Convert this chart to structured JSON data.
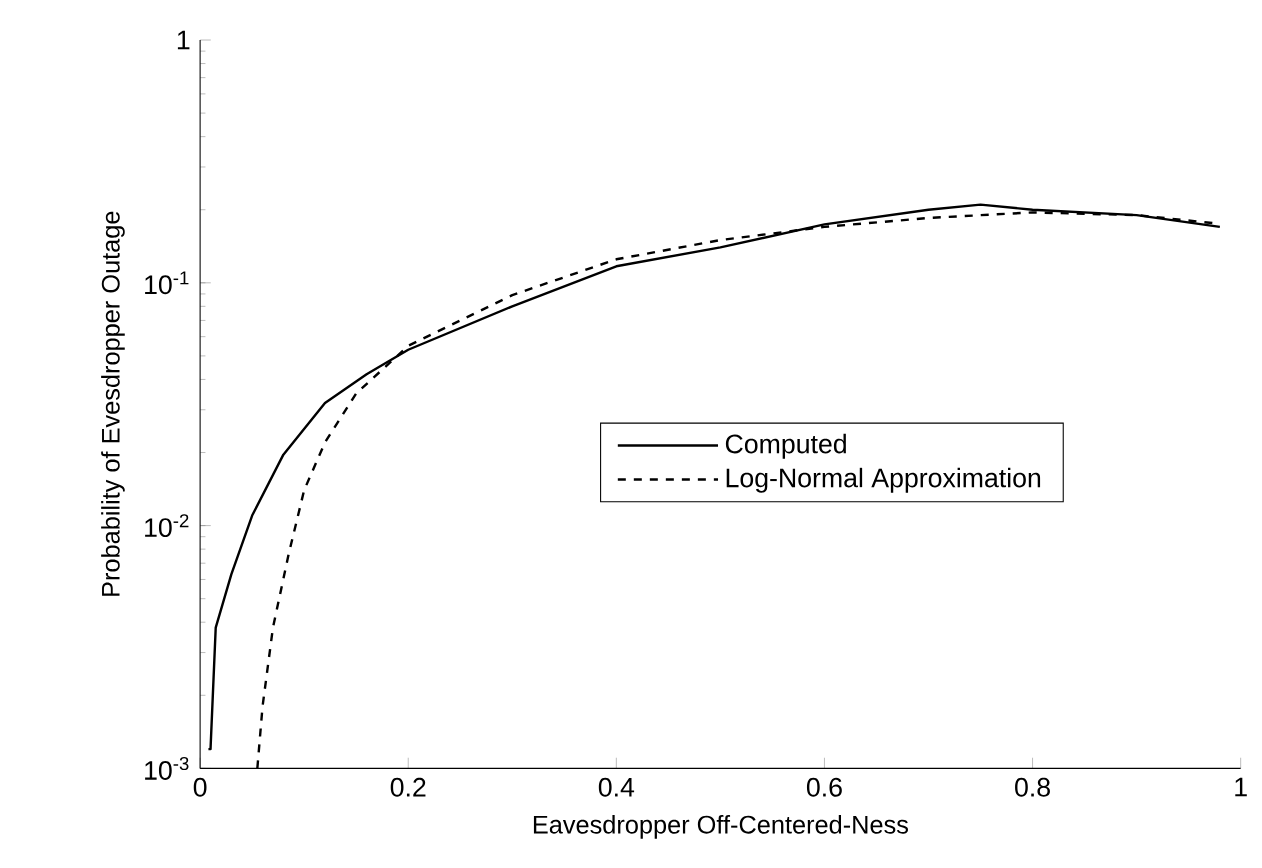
{
  "chart_data": {
    "type": "line",
    "xlabel": "Eavesdropper Off-Centered-Ness",
    "ylabel": "Probability of Evesdropper Outage",
    "log": "y",
    "xlim": [
      0,
      1
    ],
    "ylim": [
      0.001,
      1
    ],
    "xticks": [
      0,
      0.2,
      0.4,
      0.6,
      0.8,
      1
    ],
    "yticks": [
      {
        "value": 0.001,
        "label": "10$^{-3}$"
      },
      {
        "value": 0.01,
        "label": "10$^{-2}$"
      },
      {
        "value": 0.1,
        "label": "10$^{-1}$"
      },
      1
    ],
    "legend": "right",
    "grid": false,
    "series": [
      {
        "name": "Computed",
        "color": "#000000",
        "line_style": "solid",
        "x": [
          0.008,
          0.01,
          0.015,
          0.03,
          0.05,
          0.08,
          0.12,
          0.16,
          0.2,
          0.3,
          0.4,
          0.5,
          0.6,
          0.7,
          0.75,
          0.8,
          0.9,
          0.98
        ],
        "values": [
          0.0012,
          0.0012,
          0.0038,
          0.0063,
          0.011,
          0.0196,
          0.032,
          0.042,
          0.053,
          0.08,
          0.117,
          0.14,
          0.174,
          0.2,
          0.21,
          0.2,
          0.19,
          0.17
        ]
      },
      {
        "name": "Log-Normal Approximation",
        "color": "#000000",
        "line_style": "dashed",
        "x": [
          0.055,
          0.06,
          0.07,
          0.085,
          0.1,
          0.12,
          0.15,
          0.2,
          0.3,
          0.4,
          0.5,
          0.6,
          0.7,
          0.8,
          0.9,
          0.98
        ],
        "values": [
          0.001,
          0.0018,
          0.0038,
          0.0076,
          0.014,
          0.022,
          0.035,
          0.055,
          0.089,
          0.125,
          0.15,
          0.17,
          0.185,
          0.195,
          0.19,
          0.175
        ]
      }
    ]
  }
}
